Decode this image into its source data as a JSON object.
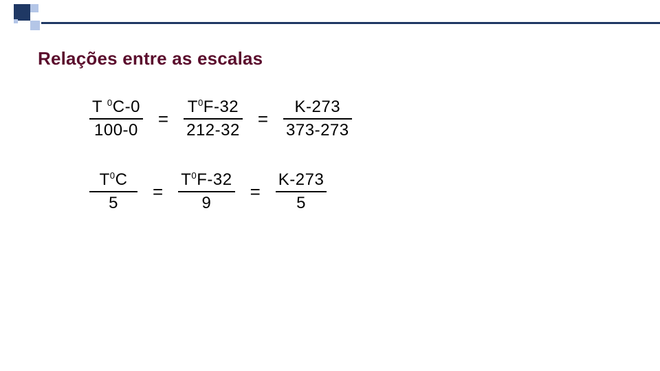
{
  "heading": "Relações entre as escalas",
  "colors": {
    "dark_navy": "#1f3864",
    "light_blue": "#b4c6e7",
    "heading_maroon": "#5b0e2d",
    "text": "#000000",
    "background": "#ffffff"
  },
  "row1": {
    "frac1": {
      "num_html": "T <span class='sup'>0</span>C-0",
      "den": "100-0"
    },
    "eq1": "=",
    "frac2": {
      "num_html": "T<span class='sup'>0</span>F-32",
      "den": "212-32"
    },
    "eq2": "=",
    "frac3": {
      "num_html": "K-273",
      "den": "373-273"
    }
  },
  "row2": {
    "frac1": {
      "num_html": "T<span class='sup'>0</span>C",
      "den": "5"
    },
    "eq1": "=",
    "frac2": {
      "num_html": "T<span class='sup'>0</span>F-32",
      "den": "9"
    },
    "eq2": "=",
    "frac3": {
      "num_html": "K-273",
      "den": "5"
    }
  }
}
